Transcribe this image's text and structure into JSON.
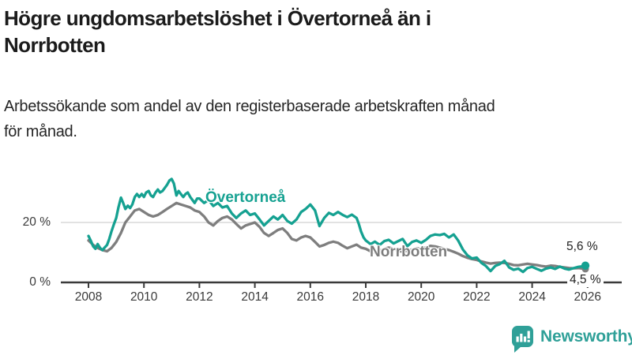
{
  "header": {
    "title_lines": [
      "Högre ungdomsarbetslöshet i Övertorneå än i",
      "Norrbotten"
    ],
    "subtitle_lines": [
      "Arbetssökande som andel av den registerbaserade arbetskraften månad",
      "för månad."
    ]
  },
  "colors": {
    "overtornea": "#15A191",
    "norrbotten": "#7E7E7E",
    "axis": "#3a3a3a",
    "gridline": "#d9d9d9",
    "brand_teal": "#2FA098"
  },
  "chart_data": {
    "type": "line",
    "title": "Högre ungdomsarbetslöshet i Övertorneå än i Norrbotten",
    "subtitle": "Arbetssökande som andel av den registerbaserade arbetskraften månad för månad.",
    "unit": "%",
    "x_axis": {
      "min": 2007.0,
      "max": 2026.6,
      "ticks": [
        2008,
        2010,
        2012,
        2014,
        2016,
        2018,
        2020,
        2022,
        2024,
        2026
      ],
      "tick_labels": [
        "2008",
        "2010",
        "2012",
        "2014",
        "2016",
        "2018",
        "2020",
        "2022",
        "2024",
        "2026"
      ]
    },
    "y_axis": {
      "min": 0,
      "max": 36,
      "ticks": [
        {
          "value": 0,
          "label": "0 %"
        },
        {
          "value": 20,
          "label": "20 %"
        }
      ],
      "gridlines": [
        20
      ]
    },
    "legend_position": "inline-labels",
    "series": [
      {
        "name": "Övertorneå",
        "color": "#15A191",
        "end_label": "5,6 %",
        "end_value": 5.6,
        "points": [
          [
            2008.0,
            15.5
          ],
          [
            2008.08,
            14.0
          ],
          [
            2008.17,
            12.0
          ],
          [
            2008.25,
            11.2
          ],
          [
            2008.33,
            12.8
          ],
          [
            2008.42,
            11.5
          ],
          [
            2008.5,
            10.8
          ],
          [
            2008.58,
            11.6
          ],
          [
            2008.67,
            12.5
          ],
          [
            2008.75,
            14.5
          ],
          [
            2008.83,
            17.0
          ],
          [
            2008.92,
            19.5
          ],
          [
            2009.0,
            21.5
          ],
          [
            2009.08,
            25.0
          ],
          [
            2009.17,
            28.3
          ],
          [
            2009.25,
            26.5
          ],
          [
            2009.33,
            24.5
          ],
          [
            2009.42,
            25.6
          ],
          [
            2009.5,
            24.8
          ],
          [
            2009.58,
            26.0
          ],
          [
            2009.67,
            28.5
          ],
          [
            2009.75,
            29.5
          ],
          [
            2009.83,
            28.5
          ],
          [
            2009.92,
            29.5
          ],
          [
            2010.0,
            28.5
          ],
          [
            2010.08,
            30.0
          ],
          [
            2010.17,
            30.5
          ],
          [
            2010.25,
            29.0
          ],
          [
            2010.33,
            28.5
          ],
          [
            2010.42,
            30.0
          ],
          [
            2010.5,
            31.0
          ],
          [
            2010.58,
            30.0
          ],
          [
            2010.67,
            30.5
          ],
          [
            2010.75,
            31.5
          ],
          [
            2010.83,
            32.5
          ],
          [
            2010.92,
            34.0
          ],
          [
            2011.0,
            34.5
          ],
          [
            2011.08,
            33.0
          ],
          [
            2011.17,
            29.0
          ],
          [
            2011.25,
            30.5
          ],
          [
            2011.33,
            29.5
          ],
          [
            2011.42,
            28.5
          ],
          [
            2011.5,
            29.5
          ],
          [
            2011.58,
            30.0
          ],
          [
            2011.67,
            28.5
          ],
          [
            2011.75,
            27.5
          ],
          [
            2011.83,
            26.5
          ],
          [
            2011.92,
            28.0
          ],
          [
            2012.0,
            28.0
          ],
          [
            2012.17,
            26.5
          ],
          [
            2012.33,
            27.5
          ],
          [
            2012.5,
            25.5
          ],
          [
            2012.67,
            26.5
          ],
          [
            2012.83,
            25.0
          ],
          [
            2013.0,
            25.5
          ],
          [
            2013.17,
            23.0
          ],
          [
            2013.33,
            21.5
          ],
          [
            2013.5,
            23.0
          ],
          [
            2013.67,
            24.0
          ],
          [
            2013.83,
            22.5
          ],
          [
            2014.0,
            23.0
          ],
          [
            2014.17,
            21.0
          ],
          [
            2014.33,
            19.0
          ],
          [
            2014.5,
            20.5
          ],
          [
            2014.67,
            22.0
          ],
          [
            2014.83,
            21.0
          ],
          [
            2015.0,
            22.5
          ],
          [
            2015.17,
            20.5
          ],
          [
            2015.33,
            19.6
          ],
          [
            2015.5,
            21.0
          ],
          [
            2015.67,
            23.5
          ],
          [
            2015.83,
            24.5
          ],
          [
            2016.0,
            26.0
          ],
          [
            2016.17,
            24.0
          ],
          [
            2016.33,
            18.8
          ],
          [
            2016.5,
            21.5
          ],
          [
            2016.67,
            23.2
          ],
          [
            2016.83,
            22.5
          ],
          [
            2017.0,
            23.5
          ],
          [
            2017.17,
            22.5
          ],
          [
            2017.33,
            21.8
          ],
          [
            2017.5,
            22.6
          ],
          [
            2017.67,
            21.5
          ],
          [
            2017.75,
            19.5
          ],
          [
            2017.83,
            17.0
          ],
          [
            2017.92,
            15.0
          ],
          [
            2018.0,
            14.0
          ],
          [
            2018.17,
            12.8
          ],
          [
            2018.33,
            13.6
          ],
          [
            2018.5,
            12.5
          ],
          [
            2018.67,
            13.8
          ],
          [
            2018.83,
            14.2
          ],
          [
            2019.0,
            13.0
          ],
          [
            2019.17,
            13.8
          ],
          [
            2019.33,
            14.5
          ],
          [
            2019.5,
            12.1
          ],
          [
            2019.67,
            13.5
          ],
          [
            2019.83,
            14.0
          ],
          [
            2020.0,
            13.2
          ],
          [
            2020.17,
            14.2
          ],
          [
            2020.33,
            15.5
          ],
          [
            2020.5,
            16.0
          ],
          [
            2020.67,
            15.8
          ],
          [
            2020.83,
            16.2
          ],
          [
            2021.0,
            15.0
          ],
          [
            2021.17,
            16.0
          ],
          [
            2021.33,
            14.0
          ],
          [
            2021.5,
            11.0
          ],
          [
            2021.67,
            9.0
          ],
          [
            2021.83,
            8.0
          ],
          [
            2022.0,
            8.3
          ],
          [
            2022.17,
            6.5
          ],
          [
            2022.33,
            5.5
          ],
          [
            2022.5,
            3.8
          ],
          [
            2022.67,
            5.5
          ],
          [
            2022.83,
            6.1
          ],
          [
            2023.0,
            7.2
          ],
          [
            2023.17,
            5.0
          ],
          [
            2023.33,
            4.2
          ],
          [
            2023.5,
            4.6
          ],
          [
            2023.67,
            3.5
          ],
          [
            2023.83,
            4.8
          ],
          [
            2024.0,
            5.2
          ],
          [
            2024.17,
            4.5
          ],
          [
            2024.33,
            3.9
          ],
          [
            2024.5,
            4.6
          ],
          [
            2024.67,
            5.0
          ],
          [
            2024.83,
            4.5
          ],
          [
            2025.0,
            5.3
          ],
          [
            2025.17,
            4.6
          ],
          [
            2025.33,
            4.3
          ],
          [
            2025.5,
            4.8
          ],
          [
            2025.67,
            5.2
          ],
          [
            2025.83,
            5.4
          ],
          [
            2025.92,
            5.6
          ]
        ]
      },
      {
        "name": "Norrbotten",
        "color": "#7E7E7E",
        "end_label": "4,5 %",
        "end_value": 4.5,
        "points": [
          [
            2008.0,
            14.0
          ],
          [
            2008.17,
            12.5
          ],
          [
            2008.33,
            11.5
          ],
          [
            2008.5,
            10.8
          ],
          [
            2008.67,
            10.4
          ],
          [
            2008.83,
            11.5
          ],
          [
            2009.0,
            13.5
          ],
          [
            2009.17,
            16.5
          ],
          [
            2009.33,
            20.0
          ],
          [
            2009.5,
            22.0
          ],
          [
            2009.67,
            24.0
          ],
          [
            2009.83,
            24.5
          ],
          [
            2010.0,
            23.5
          ],
          [
            2010.17,
            22.5
          ],
          [
            2010.33,
            22.0
          ],
          [
            2010.5,
            22.5
          ],
          [
            2010.67,
            23.5
          ],
          [
            2010.83,
            24.5
          ],
          [
            2011.0,
            25.5
          ],
          [
            2011.17,
            26.5
          ],
          [
            2011.33,
            26.0
          ],
          [
            2011.5,
            25.5
          ],
          [
            2011.67,
            25.0
          ],
          [
            2011.83,
            24.0
          ],
          [
            2012.0,
            23.5
          ],
          [
            2012.17,
            22.0
          ],
          [
            2012.33,
            20.0
          ],
          [
            2012.5,
            19.0
          ],
          [
            2012.67,
            20.5
          ],
          [
            2012.83,
            21.5
          ],
          [
            2013.0,
            22.0
          ],
          [
            2013.17,
            21.0
          ],
          [
            2013.33,
            19.5
          ],
          [
            2013.5,
            18.0
          ],
          [
            2013.67,
            19.0
          ],
          [
            2013.83,
            19.5
          ],
          [
            2014.0,
            20.0
          ],
          [
            2014.17,
            18.5
          ],
          [
            2014.33,
            16.5
          ],
          [
            2014.5,
            15.5
          ],
          [
            2014.67,
            16.5
          ],
          [
            2014.83,
            17.5
          ],
          [
            2015.0,
            18.0
          ],
          [
            2015.17,
            16.5
          ],
          [
            2015.33,
            14.5
          ],
          [
            2015.5,
            14.0
          ],
          [
            2015.67,
            15.0
          ],
          [
            2015.83,
            15.5
          ],
          [
            2016.0,
            15.0
          ],
          [
            2016.17,
            13.5
          ],
          [
            2016.33,
            12.0
          ],
          [
            2016.5,
            12.5
          ],
          [
            2016.67,
            13.2
          ],
          [
            2016.83,
            13.6
          ],
          [
            2017.0,
            13.2
          ],
          [
            2017.17,
            12.2
          ],
          [
            2017.33,
            11.4
          ],
          [
            2017.5,
            12.0
          ],
          [
            2017.67,
            12.6
          ],
          [
            2017.83,
            11.6
          ],
          [
            2018.0,
            11.2
          ],
          [
            2018.17,
            10.4
          ],
          [
            2018.33,
            10.0
          ],
          [
            2018.5,
            10.6
          ],
          [
            2018.67,
            11.2
          ],
          [
            2018.83,
            11.6
          ],
          [
            2019.0,
            11.2
          ],
          [
            2019.17,
            10.6
          ],
          [
            2019.33,
            10.2
          ],
          [
            2019.5,
            10.6
          ],
          [
            2019.67,
            11.0
          ],
          [
            2019.83,
            11.4
          ],
          [
            2020.0,
            11.2
          ],
          [
            2020.17,
            11.6
          ],
          [
            2020.33,
            12.2
          ],
          [
            2020.5,
            12.0
          ],
          [
            2020.67,
            11.6
          ],
          [
            2020.83,
            11.2
          ],
          [
            2021.0,
            10.8
          ],
          [
            2021.17,
            10.2
          ],
          [
            2021.33,
            9.6
          ],
          [
            2021.5,
            8.8
          ],
          [
            2021.67,
            8.2
          ],
          [
            2021.83,
            7.8
          ],
          [
            2022.0,
            7.5
          ],
          [
            2022.17,
            7.0
          ],
          [
            2022.33,
            6.6
          ],
          [
            2022.5,
            6.3
          ],
          [
            2022.67,
            6.5
          ],
          [
            2022.83,
            6.6
          ],
          [
            2023.0,
            6.5
          ],
          [
            2023.17,
            6.2
          ],
          [
            2023.33,
            5.8
          ],
          [
            2023.5,
            5.7
          ],
          [
            2023.67,
            6.0
          ],
          [
            2023.83,
            6.2
          ],
          [
            2024.0,
            6.0
          ],
          [
            2024.17,
            5.8
          ],
          [
            2024.33,
            5.5
          ],
          [
            2024.5,
            5.3
          ],
          [
            2024.67,
            5.6
          ],
          [
            2024.83,
            5.5
          ],
          [
            2025.0,
            5.2
          ],
          [
            2025.17,
            5.0
          ],
          [
            2025.33,
            4.8
          ],
          [
            2025.5,
            4.7
          ],
          [
            2025.67,
            4.8
          ],
          [
            2025.83,
            4.6
          ],
          [
            2025.92,
            4.5
          ]
        ]
      }
    ]
  },
  "axis_labels": {
    "y20": "20 %",
    "y0": "0 %"
  },
  "series_labels": {
    "overtornea": "Övertorneå",
    "norrbotten": "Norrbotten"
  },
  "end_labels": {
    "top": "5,6 %",
    "bottom": "4,5 %"
  },
  "footer": {
    "brand": "Newsworthy",
    "logo_icon": "bar-chart-speech-bubble-icon"
  }
}
